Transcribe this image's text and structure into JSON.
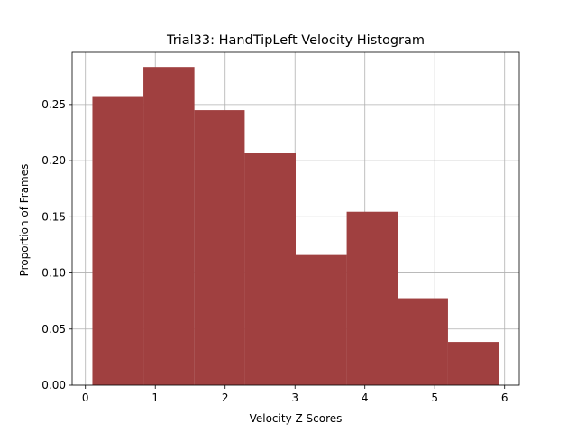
{
  "chart_data": {
    "type": "bar",
    "title": "Trial33: HandTipLeft Velocity Histogram",
    "xlabel": "Velocity Z Scores",
    "ylabel": "Proportion of Frames",
    "xlim": [
      -0.19,
      6.21
    ],
    "ylim": [
      0.0,
      0.2965
    ],
    "xticks": [
      0,
      1,
      2,
      3,
      4,
      5,
      6
    ],
    "xtick_labels": [
      "0",
      "1",
      "2",
      "3",
      "4",
      "5",
      "6"
    ],
    "yticks": [
      0.0,
      0.05,
      0.1,
      0.15,
      0.2,
      0.25
    ],
    "ytick_labels": [
      "0.00",
      "0.05",
      "0.10",
      "0.15",
      "0.20",
      "0.25"
    ],
    "grid": true,
    "bins": [
      {
        "x0": 0.1,
        "x1": 0.83,
        "value": 0.2575
      },
      {
        "x0": 0.83,
        "x1": 1.56,
        "value": 0.2835
      },
      {
        "x0": 1.56,
        "x1": 2.28,
        "value": 0.245
      },
      {
        "x0": 2.28,
        "x1": 3.01,
        "value": 0.2065
      },
      {
        "x0": 3.01,
        "x1": 3.74,
        "value": 0.116
      },
      {
        "x0": 3.74,
        "x1": 4.47,
        "value": 0.1545
      },
      {
        "x0": 4.47,
        "x1": 5.19,
        "value": 0.0775
      },
      {
        "x0": 5.19,
        "x1": 5.92,
        "value": 0.0385
      }
    ]
  },
  "colors": {
    "bar": "#a04040",
    "grid": "#b0b0b0",
    "axes": "#000000"
  }
}
